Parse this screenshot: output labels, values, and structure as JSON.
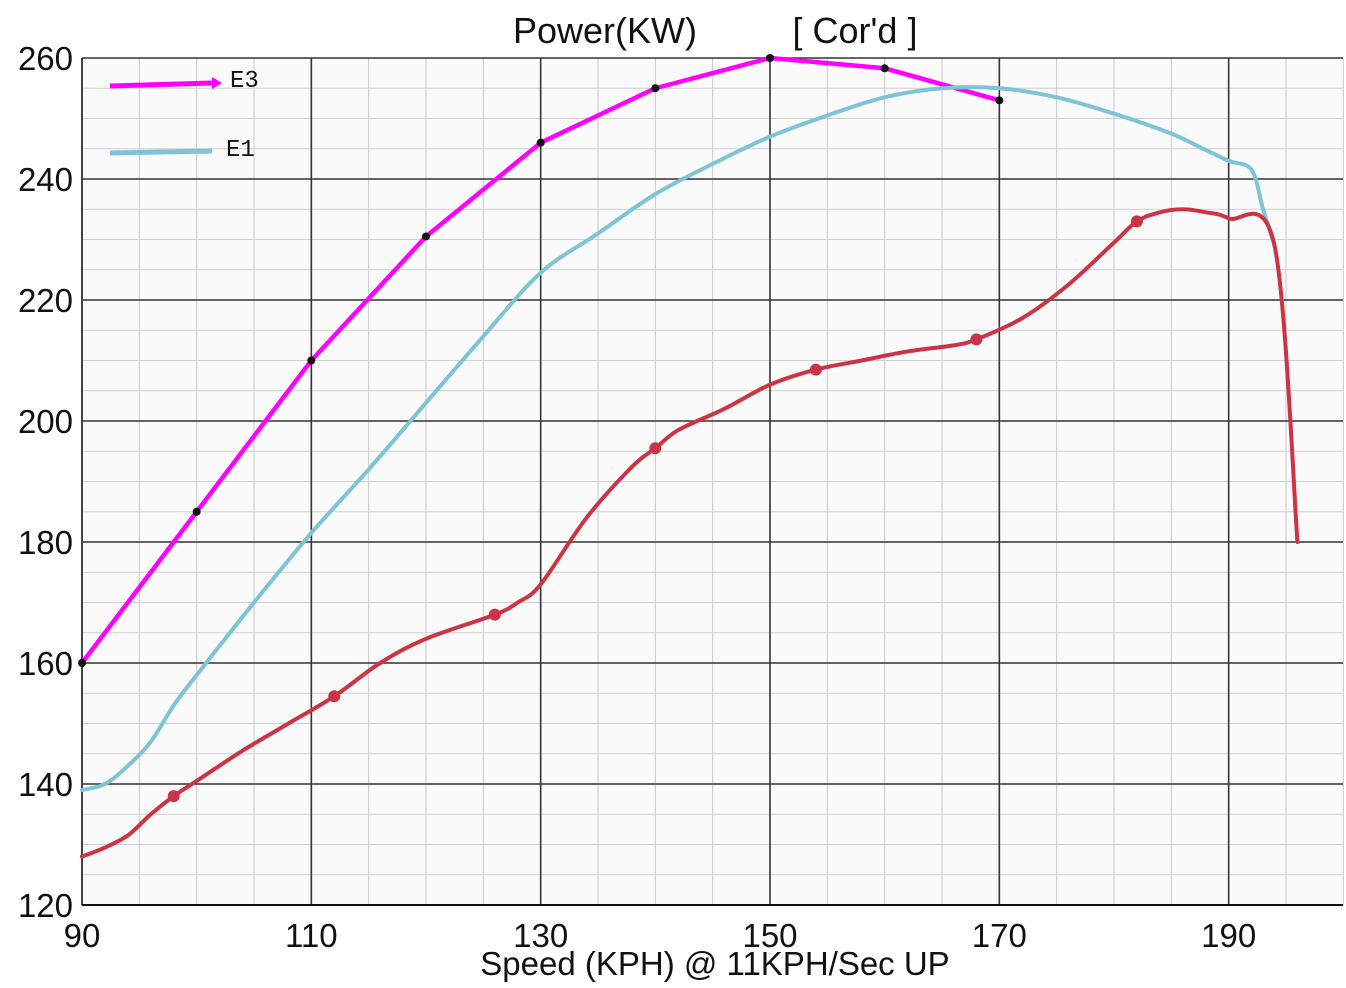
{
  "chart_data": {
    "type": "line",
    "title": "Power(KW)",
    "subtitle": "[ Cor'd ]",
    "xlabel": "Speed (KPH) @ 11KPH/Sec UP",
    "ylabel": "",
    "xlim": [
      90,
      200
    ],
    "ylim": [
      120,
      260
    ],
    "x_ticks": [
      90,
      110,
      130,
      150,
      170,
      190
    ],
    "y_ticks": [
      120,
      140,
      160,
      180,
      200,
      220,
      240,
      260
    ],
    "grid": true,
    "legend_position": "top-left",
    "series": [
      {
        "name": "E3",
        "color": "#ff00ff",
        "x": [
          90,
          100,
          110,
          120,
          130,
          140,
          150,
          160,
          170
        ],
        "y": [
          160,
          185,
          210,
          230.5,
          246,
          255,
          260,
          258.3,
          253
        ]
      },
      {
        "name": "E1",
        "color": "#7ec3d6",
        "x": [
          90,
          92,
          94,
          96,
          98,
          100,
          105,
          110,
          115,
          120,
          125,
          130,
          135,
          140,
          145,
          150,
          155,
          160,
          165,
          170,
          175,
          180,
          185,
          188,
          190,
          192,
          193,
          194
        ],
        "y": [
          139,
          140,
          143,
          147,
          153,
          158,
          170,
          181.5,
          192,
          203,
          214,
          224.5,
          231,
          237.5,
          242.5,
          247,
          250.5,
          253.5,
          255,
          255,
          253.5,
          250.8,
          247.5,
          244.8,
          243,
          241.5,
          235,
          229
        ]
      },
      {
        "name": "",
        "color": "#cc3344",
        "x": [
          90,
          92,
          94,
          96,
          98,
          100,
          104,
          108,
          112,
          116,
          120,
          126,
          128,
          130,
          134,
          138,
          140,
          142,
          146,
          150,
          154,
          158,
          162,
          166,
          168,
          172,
          176,
          180,
          182,
          184,
          186,
          188,
          190,
          194,
          196
        ],
        "y": [
          128,
          129.5,
          131.5,
          135,
          138,
          140.5,
          145.5,
          150,
          154.5,
          160,
          164,
          168,
          170,
          173,
          184,
          192.5,
          195.5,
          198.5,
          202,
          206,
          208.5,
          210,
          211.5,
          212.5,
          213.5,
          217,
          222.5,
          229.5,
          233,
          234.5,
          235,
          234.5,
          233.5,
          229,
          180
        ]
      }
    ],
    "marker_points": {
      "E3": [
        90,
        100,
        110,
        120,
        130,
        140,
        150,
        160,
        170
      ],
      "red": [
        98,
        112,
        126,
        140,
        154,
        168,
        182
      ]
    }
  }
}
